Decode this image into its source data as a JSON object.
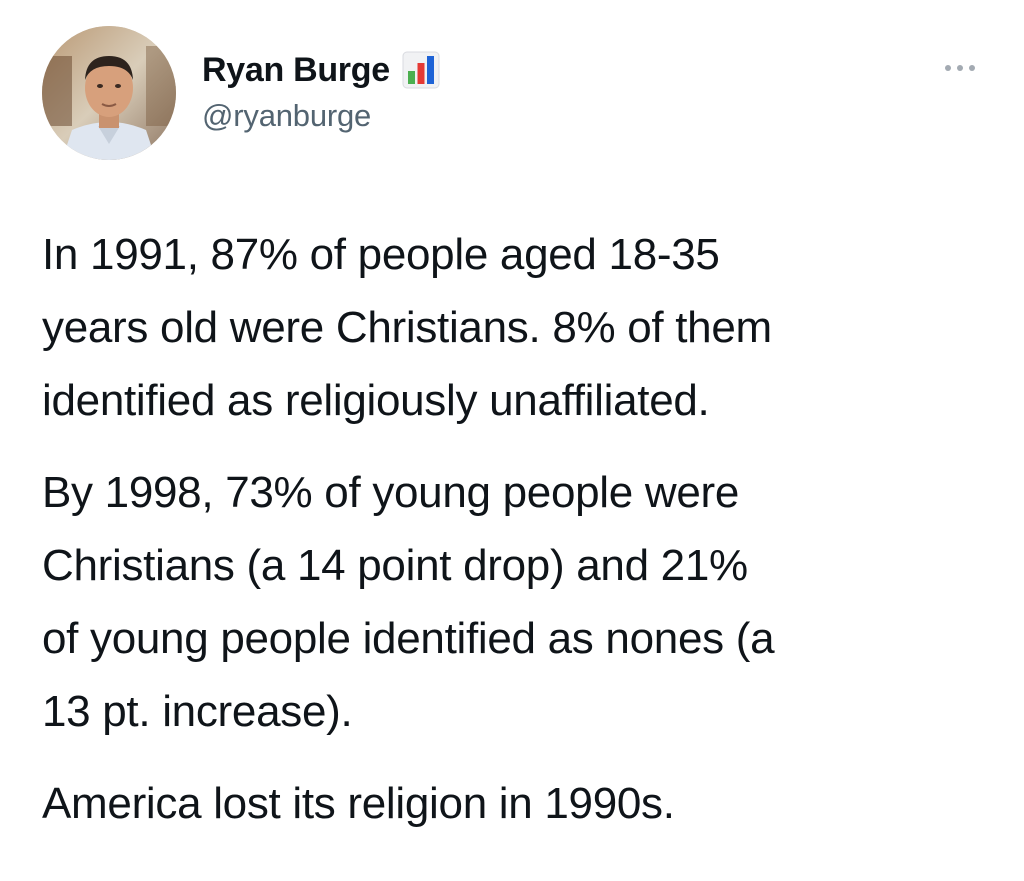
{
  "tweet": {
    "author": {
      "display_name": "Ryan Burge",
      "handle": "@ryanburge",
      "badge_icon": "bar-chart-emoji-icon",
      "avatar": "profile-photo"
    },
    "more_icon": "ellipsis-icon",
    "paragraphs": [
      {
        "lines": [
          "In 1991, 87% of people aged 18-35",
          "years old were Christians. 8% of them",
          "identified as religiously unaffiliated."
        ]
      },
      {
        "lines": [
          "By 1998, 73% of young people were",
          "Christians (a 14 point drop) and 21%",
          "of young people identified as nones (a",
          "13 pt. increase)."
        ]
      },
      {
        "lines": [
          "America lost its religion in 1990s."
        ]
      }
    ]
  },
  "colors": {
    "text": "#0f1419",
    "secondary_text": "#536471",
    "background": "#ffffff",
    "badge_green": "#4caf50",
    "badge_red": "#e53935",
    "badge_blue": "#1e63d6"
  }
}
